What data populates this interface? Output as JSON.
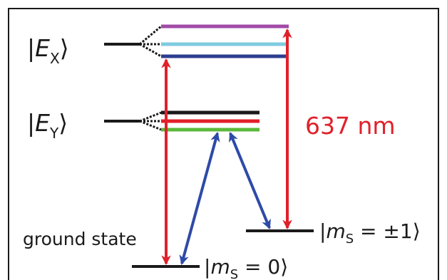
{
  "labels": {
    "ex_state": {
      "bar": "|",
      "italic": "E",
      "sub": "X",
      "close": "⟩"
    },
    "ey_state": {
      "bar": "|",
      "italic": "E",
      "sub": "Y",
      "close": "⟩"
    },
    "ground_state": "ground state",
    "ms0_ket": {
      "bar": "|",
      "italic": "m",
      "sub": "S",
      "rest": " = 0⟩"
    },
    "ms1_ket": {
      "bar": "|",
      "italic": "m",
      "sub": "S",
      "rest": " = ±1⟩"
    },
    "wavelength": "637 nm"
  },
  "colors": {
    "border": "#1a1a1a",
    "level_black": "#1a1a1a",
    "ex_purple": "#a04aa6",
    "ex_cyan": "#7ecbe0",
    "ex_blue": "#2c3e8f",
    "ey_black": "#1a1a1a",
    "ey_red": "#e0202a",
    "ey_green": "#5cb83a",
    "laser_red": "#e0202a",
    "transition_blue": "#2e4aa8"
  }
}
